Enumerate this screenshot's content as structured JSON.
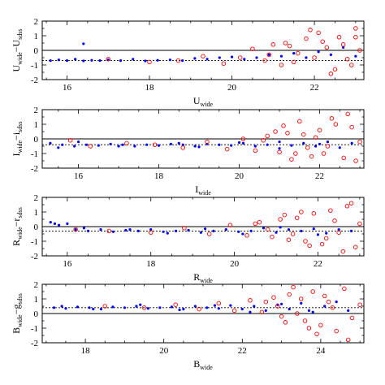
{
  "chart_data": [
    {
      "type": "scatter",
      "xlabel": "U",
      "xlabel_sub": "wide",
      "ylabel": "U",
      "ylabel_sub": "wide",
      "ylabel_minus": "−U",
      "ylabel_minus_sub": "sdss",
      "xlim": [
        15.4,
        23.2
      ],
      "ylim": [
        -2,
        2
      ],
      "xticks": [
        16,
        18,
        20,
        22
      ],
      "yticks": [
        -2,
        -1,
        0,
        1,
        2
      ],
      "reference_lines": [
        0
      ],
      "dashed_offset": -0.7,
      "grid": false,
      "series": [
        {
          "color": "#0000ff",
          "marker": "filled-dot",
          "x": [
            15.6,
            15.8,
            16.0,
            16.2,
            16.4,
            16.6,
            16.8,
            17.0,
            17.3,
            17.6,
            17.9,
            18.2,
            18.5,
            18.8,
            19.1,
            19.4,
            19.7,
            20.0,
            20.3,
            20.6,
            20.9,
            21.2,
            21.5,
            21.8,
            22.1,
            22.4,
            22.7,
            23.0,
            16.4
          ],
          "y": [
            -0.7,
            -0.65,
            -0.7,
            -0.6,
            -0.72,
            -0.68,
            -0.7,
            -0.65,
            -0.7,
            -0.6,
            -0.72,
            -0.68,
            -0.65,
            -0.7,
            -0.55,
            -0.6,
            -0.5,
            -0.45,
            -0.6,
            -0.5,
            -0.3,
            -0.4,
            -0.2,
            -0.5,
            -0.1,
            -0.3,
            0.2,
            -0.4,
            0.45
          ]
        },
        {
          "color": "#ff0000",
          "marker": "open-circle",
          "x": [
            17.0,
            18.0,
            18.7,
            19.3,
            19.8,
            20.2,
            20.5,
            20.8,
            21.0,
            21.2,
            21.4,
            21.6,
            21.8,
            22.0,
            22.1,
            22.3,
            22.5,
            22.6,
            22.8,
            23.0,
            23.1,
            21.5,
            22.2,
            22.9,
            20.9,
            21.9,
            22.7,
            22.4,
            23.0,
            21.3
          ],
          "y": [
            -0.6,
            -0.8,
            -0.7,
            -0.4,
            -0.9,
            -0.5,
            0.1,
            -0.7,
            0.4,
            -1.0,
            0.3,
            -0.2,
            0.8,
            -0.5,
            1.2,
            0.2,
            -1.3,
            0.9,
            -0.6,
            1.5,
            0.0,
            -0.8,
            0.6,
            -1.0,
            -0.3,
            1.4,
            0.4,
            -1.6,
            0.9,
            0.5
          ]
        }
      ]
    },
    {
      "type": "scatter",
      "xlabel": "I",
      "xlabel_sub": "wide",
      "ylabel": "I",
      "ylabel_sub": "wide",
      "ylabel_minus": "−i",
      "ylabel_minus_sub": "sdss",
      "xlim": [
        15.1,
        23.1
      ],
      "ylim": [
        -2,
        2
      ],
      "xticks": [
        16,
        18,
        20,
        22
      ],
      "yticks": [
        -2,
        -1,
        0,
        1,
        2
      ],
      "reference_lines": [
        0
      ],
      "dashed_offset": -0.4,
      "grid": false,
      "series": [
        {
          "color": "#0000ff",
          "marker": "filled-dot",
          "x": [
            15.3,
            15.6,
            15.9,
            16.2,
            16.5,
            16.8,
            17.1,
            17.4,
            17.7,
            18.0,
            18.3,
            18.6,
            18.9,
            19.2,
            19.5,
            19.8,
            20.1,
            20.4,
            20.7,
            21.0,
            21.3,
            21.6,
            21.9,
            22.2,
            22.5,
            22.8,
            15.5,
            16.0,
            17.0,
            18.5,
            19.0,
            20.0,
            21.0,
            22.0
          ],
          "y": [
            -0.3,
            -0.4,
            -0.5,
            -0.4,
            -0.45,
            -0.35,
            -0.4,
            -0.5,
            -0.4,
            -0.45,
            -0.35,
            -0.4,
            -0.5,
            -0.35,
            -0.4,
            -0.45,
            -0.3,
            -0.5,
            -0.4,
            -0.2,
            -0.45,
            -0.3,
            -0.5,
            -0.2,
            -0.6,
            -0.3,
            -0.6,
            -0.2,
            -0.5,
            -0.3,
            -0.55,
            -0.25,
            -0.65,
            -0.35
          ]
        },
        {
          "color": "#ff0000",
          "marker": "open-circle",
          "x": [
            15.8,
            16.3,
            17.2,
            17.9,
            18.6,
            19.2,
            19.7,
            20.1,
            20.4,
            20.7,
            21.0,
            21.2,
            21.4,
            21.6,
            21.8,
            22.0,
            22.2,
            22.4,
            22.6,
            22.8,
            23.0,
            21.1,
            21.7,
            22.3,
            22.9,
            20.9,
            21.5,
            22.1,
            22.7,
            20.6,
            21.3,
            21.9
          ],
          "y": [
            -0.1,
            -0.5,
            -0.3,
            -0.4,
            -0.6,
            -0.2,
            -0.7,
            0.0,
            -0.8,
            0.2,
            -0.9,
            0.4,
            -1.0,
            0.3,
            -1.2,
            0.6,
            -0.5,
            1.0,
            -1.3,
            0.8,
            -0.2,
            0.9,
            -0.6,
            1.4,
            -1.5,
            0.5,
            1.2,
            -1.0,
            1.7,
            -0.1,
            -1.4,
            0.1
          ]
        }
      ]
    },
    {
      "type": "scatter",
      "xlabel": "R",
      "xlabel_sub": "wide",
      "ylabel": "R",
      "ylabel_sub": "wide",
      "ylabel_minus": "−r",
      "ylabel_minus_sub": "sdss",
      "xlim": [
        15.4,
        23.1
      ],
      "ylim": [
        -2,
        2
      ],
      "xticks": [
        16,
        18,
        20,
        22
      ],
      "yticks": [
        -2,
        -1,
        0,
        1,
        2
      ],
      "reference_lines": [
        0
      ],
      "dashed_offset": -0.3,
      "grid": false,
      "series": [
        {
          "color": "#0000ff",
          "marker": "filled-dot",
          "x": [
            15.6,
            15.8,
            16.0,
            16.2,
            16.5,
            16.8,
            17.1,
            17.4,
            17.7,
            18.0,
            18.3,
            18.6,
            18.9,
            19.2,
            19.5,
            19.8,
            20.1,
            20.4,
            20.7,
            21.0,
            21.3,
            21.6,
            21.9,
            22.2,
            22.5,
            22.8,
            15.7,
            16.4,
            17.5,
            18.4,
            19.3,
            20.2,
            21.1,
            22.0
          ],
          "y": [
            0.3,
            0.1,
            0.2,
            -0.2,
            -0.3,
            -0.2,
            -0.35,
            -0.25,
            -0.3,
            -0.2,
            -0.35,
            -0.3,
            -0.25,
            -0.4,
            -0.3,
            -0.2,
            -0.35,
            -0.3,
            -0.1,
            -0.4,
            -0.2,
            -0.3,
            -0.15,
            -0.45,
            -0.2,
            -0.3,
            0.2,
            -0.1,
            -0.2,
            -0.45,
            -0.15,
            -0.5,
            -0.05,
            -0.55
          ]
        },
        {
          "color": "#ff0000",
          "marker": "open-circle",
          "x": [
            16.2,
            17.0,
            18.0,
            18.8,
            19.4,
            19.9,
            20.3,
            20.6,
            20.9,
            21.1,
            21.3,
            21.5,
            21.7,
            21.9,
            22.1,
            22.3,
            22.5,
            22.7,
            22.9,
            23.0,
            20.8,
            21.6,
            22.2,
            22.8,
            21.2,
            21.8,
            22.4,
            22.6,
            20.5,
            21.4
          ],
          "y": [
            -0.2,
            -0.3,
            -0.4,
            -0.1,
            -0.5,
            0.1,
            -0.6,
            0.3,
            -0.7,
            0.5,
            -0.9,
            0.6,
            -1.0,
            0.9,
            -1.2,
            1.1,
            -0.4,
            1.4,
            -1.4,
            0.2,
            -0.2,
            1.0,
            -0.8,
            1.6,
            0.8,
            -1.3,
            0.4,
            -1.7,
            0.2,
            -0.5
          ]
        }
      ]
    },
    {
      "type": "scatter",
      "xlabel": "B",
      "xlabel_sub": "wide",
      "ylabel": "B",
      "ylabel_sub": "wide",
      "ylabel_minus": "−g",
      "ylabel_minus_sub": "sdss",
      "xlim": [
        16.9,
        25.1
      ],
      "ylim": [
        -2,
        2
      ],
      "xticks": [
        18,
        20,
        22,
        24
      ],
      "yticks": [
        -2,
        -1,
        0,
        1,
        2
      ],
      "reference_lines": [
        0
      ],
      "dashed_offset": 0.4,
      "grid": false,
      "series": [
        {
          "color": "#0000ff",
          "marker": "filled-dot",
          "x": [
            17.2,
            17.5,
            17.8,
            18.1,
            18.4,
            18.7,
            19.0,
            19.3,
            19.6,
            19.9,
            20.2,
            20.5,
            20.8,
            21.1,
            21.4,
            21.7,
            22.0,
            22.3,
            22.6,
            22.9,
            23.2,
            23.5,
            23.8,
            24.1,
            24.4,
            24.7,
            17.4,
            18.2,
            19.4,
            20.4,
            21.3,
            22.2,
            23.0,
            23.7
          ],
          "y": [
            0.4,
            0.35,
            0.45,
            0.4,
            0.3,
            0.45,
            0.4,
            0.5,
            0.35,
            0.4,
            0.45,
            0.3,
            0.5,
            0.4,
            0.35,
            0.55,
            0.3,
            0.5,
            0.2,
            0.6,
            0.3,
            0.7,
            0.1,
            0.5,
            0.8,
            0.2,
            0.5,
            0.3,
            0.6,
            0.25,
            0.55,
            0.1,
            0.65,
            0.2
          ]
        },
        {
          "color": "#ff0000",
          "marker": "open-circle",
          "x": [
            18.5,
            19.5,
            20.3,
            20.9,
            21.4,
            21.8,
            22.2,
            22.5,
            22.8,
            23.0,
            23.2,
            23.4,
            23.6,
            23.8,
            24.0,
            24.2,
            24.4,
            24.6,
            24.8,
            25.0,
            22.6,
            23.1,
            23.5,
            23.9,
            24.3,
            24.7,
            22.9,
            23.3,
            23.7,
            24.1
          ],
          "y": [
            0.5,
            0.4,
            0.6,
            0.3,
            0.7,
            0.2,
            0.9,
            0.1,
            1.1,
            -0.2,
            1.3,
            0.0,
            -0.5,
            1.5,
            -0.8,
            0.8,
            -1.2,
            1.7,
            -0.3,
            0.6,
            0.8,
            -0.6,
            1.0,
            -1.4,
            0.4,
            -1.8,
            0.5,
            1.8,
            -1.0,
            1.2
          ]
        }
      ]
    }
  ]
}
